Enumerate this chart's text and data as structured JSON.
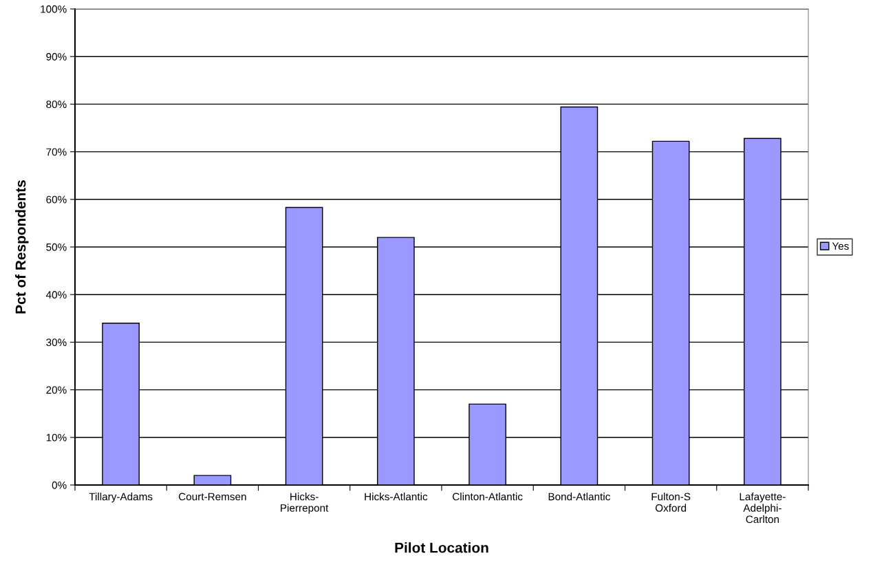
{
  "chart_data": {
    "type": "bar",
    "xlabel": "Pilot Location",
    "ylabel": "Pct of Respondents",
    "categories": [
      "Tillary-Adams",
      "Court-Remsen",
      "Hicks-\nPierrepont",
      "Hicks-Atlantic",
      "Clinton-Atlantic",
      "Bond-Atlantic",
      "Fulton-S\nOxford",
      "Lafayette-\nAdelphi-\nCarlton"
    ],
    "series": [
      {
        "name": "Yes",
        "color": "#9999ff",
        "values": [
          34,
          2,
          58.3,
          52,
          17,
          79.4,
          72.2,
          72.8
        ]
      }
    ],
    "ylim": [
      0,
      100
    ],
    "yticks": [
      {
        "value": 0,
        "label": "0%"
      },
      {
        "value": 10,
        "label": "10%"
      },
      {
        "value": 20,
        "label": "20%"
      },
      {
        "value": 30,
        "label": "30%"
      },
      {
        "value": 40,
        "label": "40%"
      },
      {
        "value": 50,
        "label": "50%"
      },
      {
        "value": 60,
        "label": "60%"
      },
      {
        "value": 70,
        "label": "70%"
      },
      {
        "value": 80,
        "label": "80%"
      },
      {
        "value": 90,
        "label": "90%"
      },
      {
        "value": 100,
        "label": "100%"
      }
    ],
    "grid": "y",
    "legend": "right"
  }
}
